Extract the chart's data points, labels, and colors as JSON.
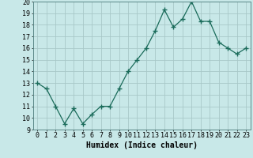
{
  "x": [
    0,
    1,
    2,
    3,
    4,
    5,
    6,
    7,
    8,
    9,
    10,
    11,
    12,
    13,
    14,
    15,
    16,
    17,
    18,
    19,
    20,
    21,
    22,
    23
  ],
  "y": [
    13,
    12.5,
    11,
    9.5,
    10.8,
    9.5,
    10.3,
    11,
    11,
    12.5,
    14,
    15,
    16,
    17.5,
    19.3,
    17.8,
    18.5,
    20,
    18.3,
    18.3,
    16.5,
    16,
    15.5,
    16
  ],
  "line_color": "#1a6b5a",
  "marker": "+",
  "marker_size": 4,
  "bg_color": "#c8e8e8",
  "grid_color": "#a8c8c8",
  "xlabel": "Humidex (Indice chaleur)",
  "xlabel_fontsize": 7,
  "tick_fontsize": 6,
  "ylim": [
    9,
    20
  ],
  "xlim": [
    -0.5,
    23.5
  ],
  "yticks": [
    9,
    10,
    11,
    12,
    13,
    14,
    15,
    16,
    17,
    18,
    19,
    20
  ],
  "xticks": [
    0,
    1,
    2,
    3,
    4,
    5,
    6,
    7,
    8,
    9,
    10,
    11,
    12,
    13,
    14,
    15,
    16,
    17,
    18,
    19,
    20,
    21,
    22,
    23
  ],
  "xtick_labels": [
    "0",
    "1",
    "2",
    "3",
    "4",
    "5",
    "6",
    "7",
    "8",
    "9",
    "10",
    "11",
    "12",
    "13",
    "14",
    "15",
    "16",
    "17",
    "18",
    "19",
    "20",
    "21",
    "22",
    "23"
  ]
}
